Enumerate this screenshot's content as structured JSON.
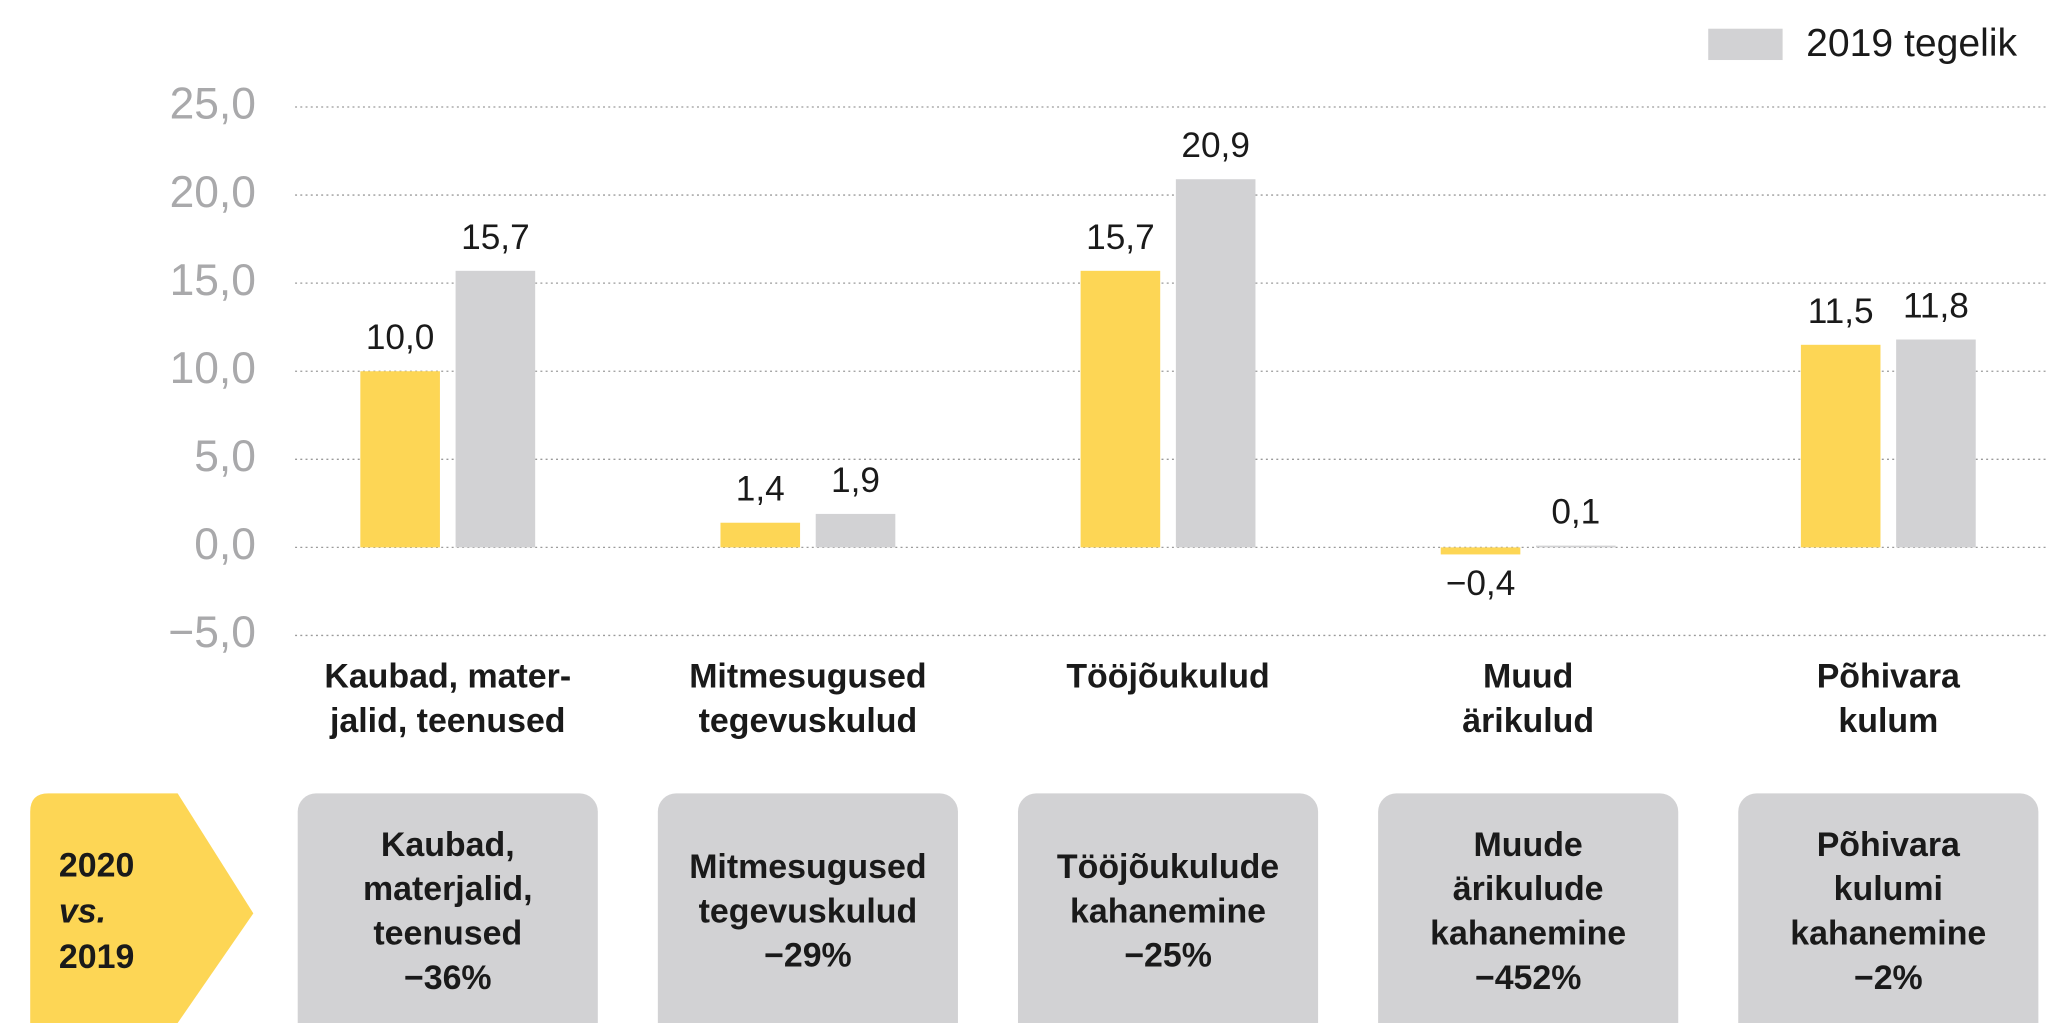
{
  "chart_data": {
    "type": "bar",
    "categories": [
      [
        "Kaubad, mater-",
        "jalid, teenused"
      ],
      [
        "Mitmesugused",
        "tegevuskulud"
      ],
      [
        "Tööjõukulud"
      ],
      [
        "Muud",
        "ärikulud"
      ],
      [
        "Põhivara",
        "kulum"
      ]
    ],
    "series": [
      {
        "color": "#fdd655",
        "values": [
          10.0,
          1.4,
          15.7,
          -0.4,
          11.5
        ],
        "value_labels": [
          "10,0",
          "1,4",
          "15,7",
          "−0,4",
          "11,5"
        ]
      },
      {
        "name": "2019 tegelik",
        "color": "#d2d2d4",
        "values": [
          15.7,
          1.9,
          20.9,
          0.1,
          11.8
        ],
        "value_labels": [
          "15,7",
          "1,9",
          "20,9",
          "0,1",
          "11,8"
        ]
      }
    ],
    "ylim": [
      -5,
      25
    ],
    "yticks": [
      {
        "value": -5,
        "label": "−5,0"
      },
      {
        "value": 0,
        "label": "0,0"
      },
      {
        "value": 5,
        "label": "5,0"
      },
      {
        "value": 10,
        "label": "10,0"
      },
      {
        "value": 15,
        "label": "15,0"
      },
      {
        "value": 20,
        "label": "20,0"
      },
      {
        "value": 25,
        "label": "25,0"
      }
    ],
    "grid": true,
    "legend": "top-right"
  },
  "comparison": {
    "label": [
      "2020",
      "vs.",
      "2019"
    ],
    "boxes": [
      [
        "Kaubad,",
        "materjalid,",
        "teenused",
        "−36%"
      ],
      [
        "Mitmesugused",
        "tegevuskulud",
        "−29%"
      ],
      [
        "Tööjõukulude",
        "kahanemine",
        "−25%"
      ],
      [
        "Muude",
        "ärikulude",
        "kahanemine",
        "−452%"
      ],
      [
        "Põhivara",
        "kulumi",
        "kahanemine",
        "−2%"
      ]
    ]
  }
}
